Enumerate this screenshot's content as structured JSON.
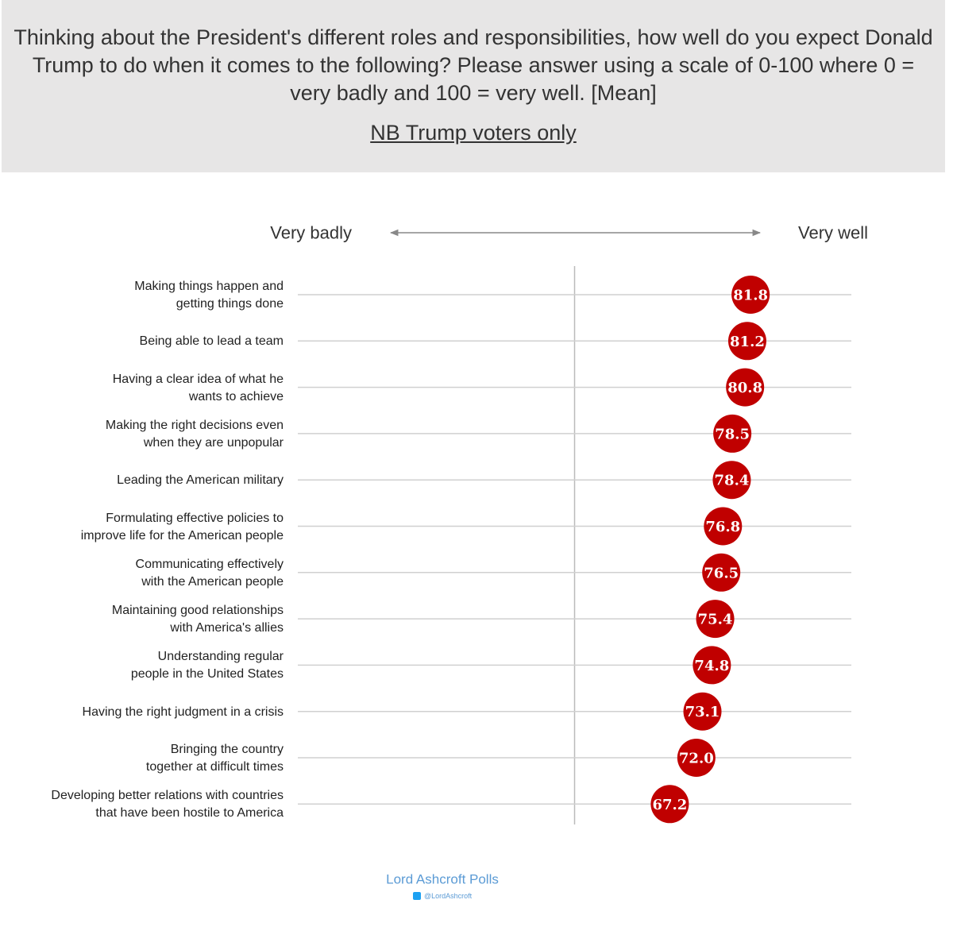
{
  "chart_data": {
    "type": "dot",
    "title": "Thinking about the President's different roles and responsibilities, how well do you expect Donald Trump to do when it comes to the following? Please answer using a scale of 0-100 where 0 = very badly and 100 = very well. [Mean]",
    "subtitle": "NB Trump voters only",
    "axis_left_label": "Very badly",
    "axis_right_label": "Very well",
    "categories": [
      "Making things happen and\ngetting things done",
      "Being able to lead a team",
      "Having a clear idea of what he\nwants to achieve",
      "Making the right decisions even\nwhen they are unpopular",
      "Leading the American military",
      "Formulating effective policies to\nimprove life for the American people",
      "Communicating effectively\nwith the American people",
      "Maintaining good relationships\nwith America's allies",
      "Understanding regular\npeople in the United States",
      "Having the right judgment in a crisis",
      "Bringing the country\ntogether at difficult times",
      "Developing better relations with countries\nthat have been hostile to America"
    ],
    "values": [
      81.8,
      81.2,
      80.8,
      78.5,
      78.4,
      76.8,
      76.5,
      75.4,
      74.8,
      73.1,
      72.0,
      67.2
    ],
    "value_labels": [
      "81.8",
      "81.2",
      "80.8",
      "78.5",
      "78.4",
      "76.8",
      "76.5",
      "75.4",
      "74.8",
      "73.1",
      "72.0",
      "67.2"
    ],
    "color": "#c00000",
    "xlim": [
      0,
      100
    ],
    "source": "Lord Ashcroft Polls",
    "handle": "@LordAshcroft"
  }
}
